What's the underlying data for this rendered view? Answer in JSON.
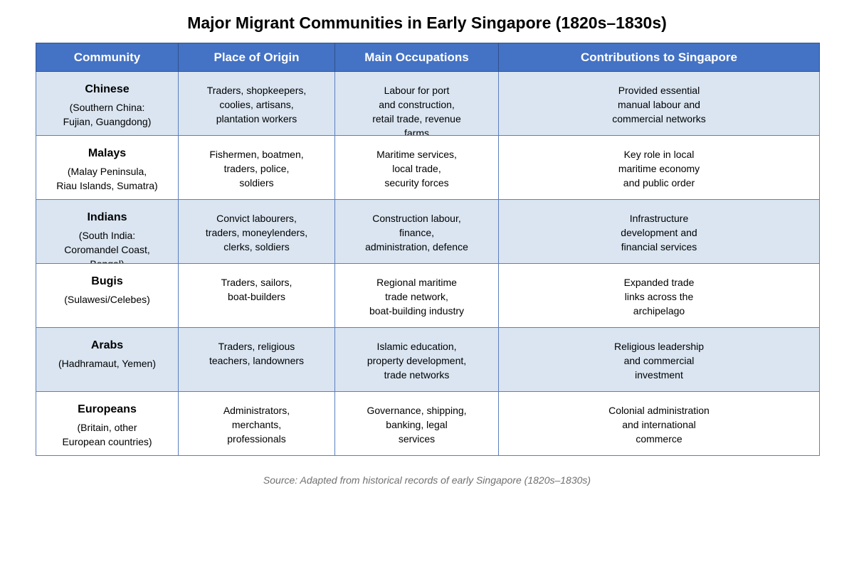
{
  "title": "Major Migrant Communities in Early Singapore (1820s–1830s)",
  "header": {
    "columns": [
      "Community",
      "Place of Origin",
      "Main Occupations",
      "Contributions to Singapore"
    ]
  },
  "colors": {
    "header_bg": "#4472c4",
    "header_text": "#ffffff",
    "row_shaded": "#dae5f1",
    "row_plain": "#ffffff",
    "border": "#5b7fbd",
    "source_text": "#707070"
  },
  "rows": [
    {
      "community": "Chinese",
      "origin": "(Southern China:\nFujian, Guangdong)",
      "place_of_origin": "Traders, shopkeepers,\ncoolies, artisans,\nplantation workers",
      "occupations": "Labour for port\nand construction,\nretail trade, revenue\nfarms",
      "contributions": "Provided essential\nmanual labour and\ncommercial networks"
    },
    {
      "community": "Malays",
      "origin": "(Malay Peninsula,\nRiau Islands, Sumatra)",
      "place_of_origin": "Fishermen, boatmen,\ntraders, police,\nsoldiers",
      "occupations": "Maritime services,\nlocal trade,\nsecurity forces",
      "contributions": "Key role in local\nmaritime economy\nand public order"
    },
    {
      "community": "Indians",
      "origin": "(South India:\nCoromandel Coast,\nBengal)",
      "place_of_origin": "Convict labourers,\ntraders, moneylenders,\nclerks, soldiers",
      "occupations": "Construction labour,\nfinance,\nadministration, defence",
      "contributions": "Infrastructure\ndevelopment and\nfinancial services"
    },
    {
      "community": "Bugis",
      "origin": "(Sulawesi/Celebes)",
      "place_of_origin": "Traders, sailors,\nboat-builders",
      "occupations": "Regional maritime\ntrade network,\nboat-building industry",
      "contributions": "Expanded trade\nlinks across the\narchipelago"
    },
    {
      "community": "Arabs",
      "origin": "(Hadhramaut, Yemen)",
      "place_of_origin": "Traders, religious\nteachers, landowners",
      "occupations": "Islamic education,\nproperty development,\ntrade networks",
      "contributions": "Religious leadership\nand commercial\ninvestment"
    },
    {
      "community": "Europeans",
      "origin": "(Britain, other\nEuropean countries)",
      "place_of_origin": "Administrators,\nmerchants,\nprofessionals",
      "occupations": "Governance, shipping,\nbanking, legal\nservices",
      "contributions": "Colonial administration\nand international\ncommerce"
    }
  ],
  "source": "Source: Adapted from historical records of early Singapore (1820s–1830s)"
}
